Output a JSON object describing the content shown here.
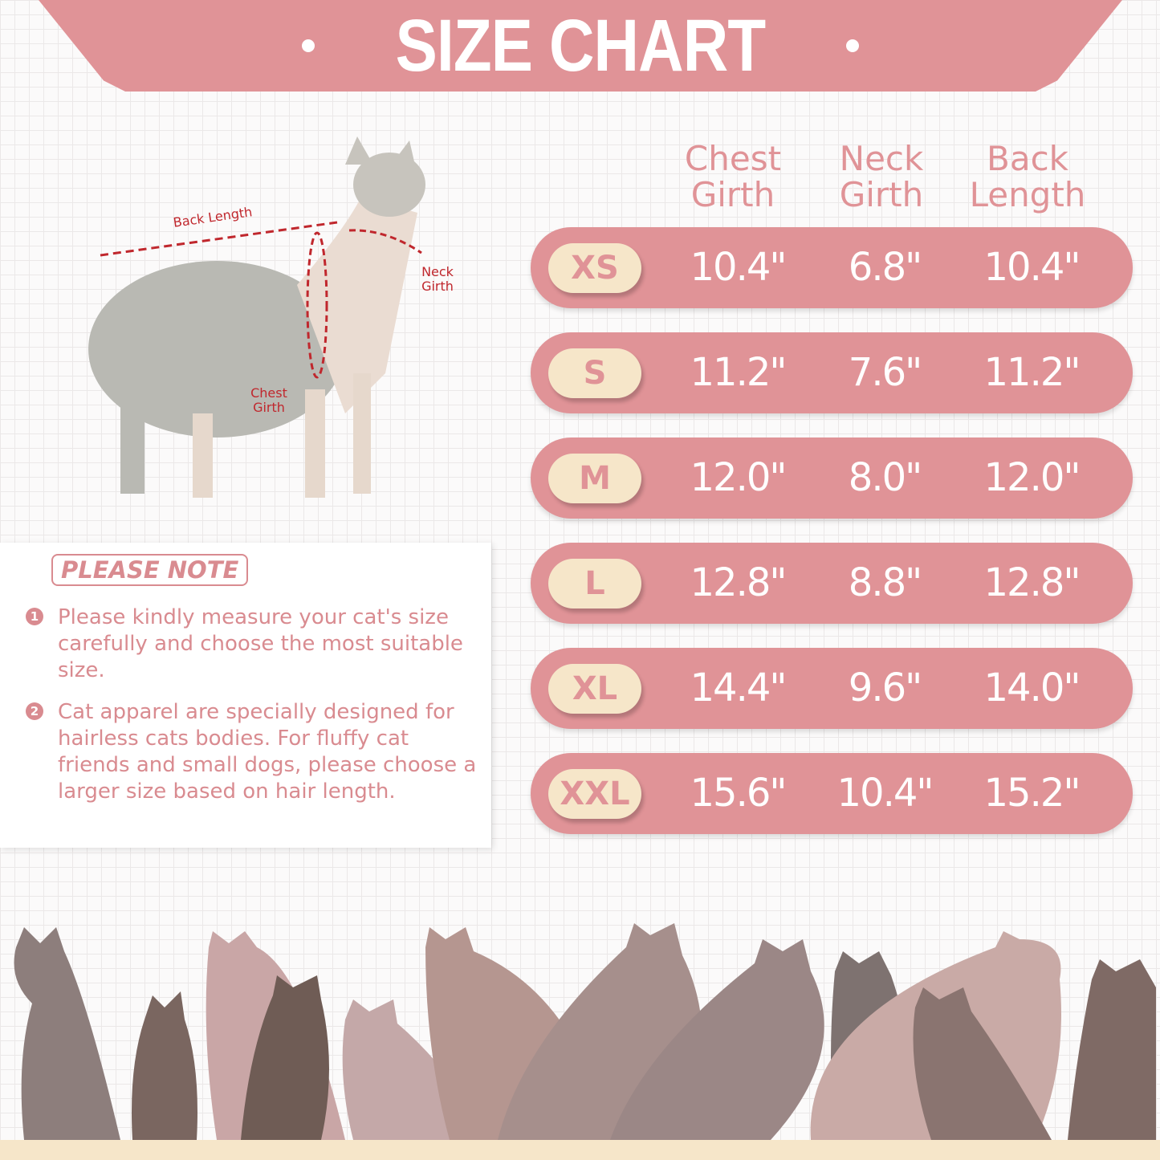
{
  "title": "SIZE CHART",
  "columns": [
    "Chest Girth",
    "Neck Girth",
    "Back Length"
  ],
  "rows": [
    {
      "size": "XS",
      "chest": "10.4\"",
      "neck": "6.8\"",
      "back": "10.4\""
    },
    {
      "size": "S",
      "chest": "11.2\"",
      "neck": "7.6\"",
      "back": "11.2\""
    },
    {
      "size": "M",
      "chest": "12.0\"",
      "neck": "8.0\"",
      "back": "12.0\""
    },
    {
      "size": "L",
      "chest": "12.8\"",
      "neck": "8.8\"",
      "back": "12.8\""
    },
    {
      "size": "XL",
      "chest": "14.4\"",
      "neck": "9.6\"",
      "back": "14.0\""
    },
    {
      "size": "XXL",
      "chest": "15.6\"",
      "neck": "10.4\"",
      "back": "15.2\""
    }
  ],
  "diagram": {
    "back_length": "Back Length",
    "neck_girth": "Neck Girth",
    "chest_girth": "Chest Girth"
  },
  "note": {
    "title": "PLEASE NOTE",
    "items": [
      {
        "num": "1",
        "text": "Please kindly measure your cat's size carefully and choose the most suitable size."
      },
      {
        "num": "2",
        "text": "Cat apparel are specially designed for hairless cats bodies. For fluffy cat friends and small dogs, please choose a larger size based on hair length."
      }
    ]
  },
  "colors": {
    "accent": "#e09397",
    "cream": "#f6e6c9",
    "text": "#d98b90",
    "measure_line": "#c0272d"
  }
}
